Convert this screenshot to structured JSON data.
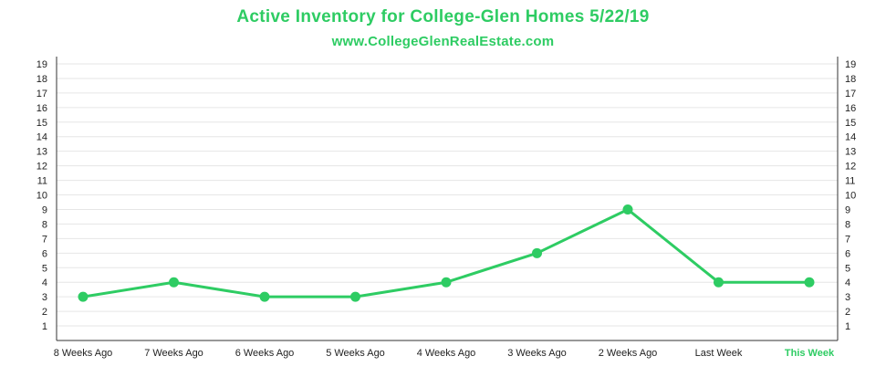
{
  "header": {
    "title": "Active Inventory for College-Glen Homes 5/22/19",
    "subtitle": "www.CollegeGlenRealEstate.com"
  },
  "colors": {
    "accent": "#2ecc63",
    "grid": "#e6e6e6",
    "axis": "#333333",
    "text": "#222222"
  },
  "chart_data": {
    "type": "line",
    "categories": [
      "8 Weeks Ago",
      "7 Weeks Ago",
      "6 Weeks Ago",
      "5 Weeks Ago",
      "4 Weeks Ago",
      "3 Weeks Ago",
      "2 Weeks Ago",
      "Last Week",
      "This Week"
    ],
    "series": [
      {
        "values": [
          3,
          4,
          3,
          3,
          4,
          6,
          9,
          4,
          4
        ]
      }
    ],
    "highlight_category": "This Week",
    "title": "Active Inventory for College-Glen Homes 5/22/19",
    "subtitle": "www.CollegeGlenRealEstate.com",
    "xlabel": "",
    "ylabel": "",
    "ylim": [
      0,
      19
    ],
    "yticks": [
      1,
      2,
      3,
      4,
      5,
      6,
      7,
      8,
      9,
      10,
      11,
      12,
      13,
      14,
      15,
      16,
      17,
      18,
      19
    ],
    "y_axis_both_sides": true,
    "grid": true,
    "legend": "none"
  }
}
